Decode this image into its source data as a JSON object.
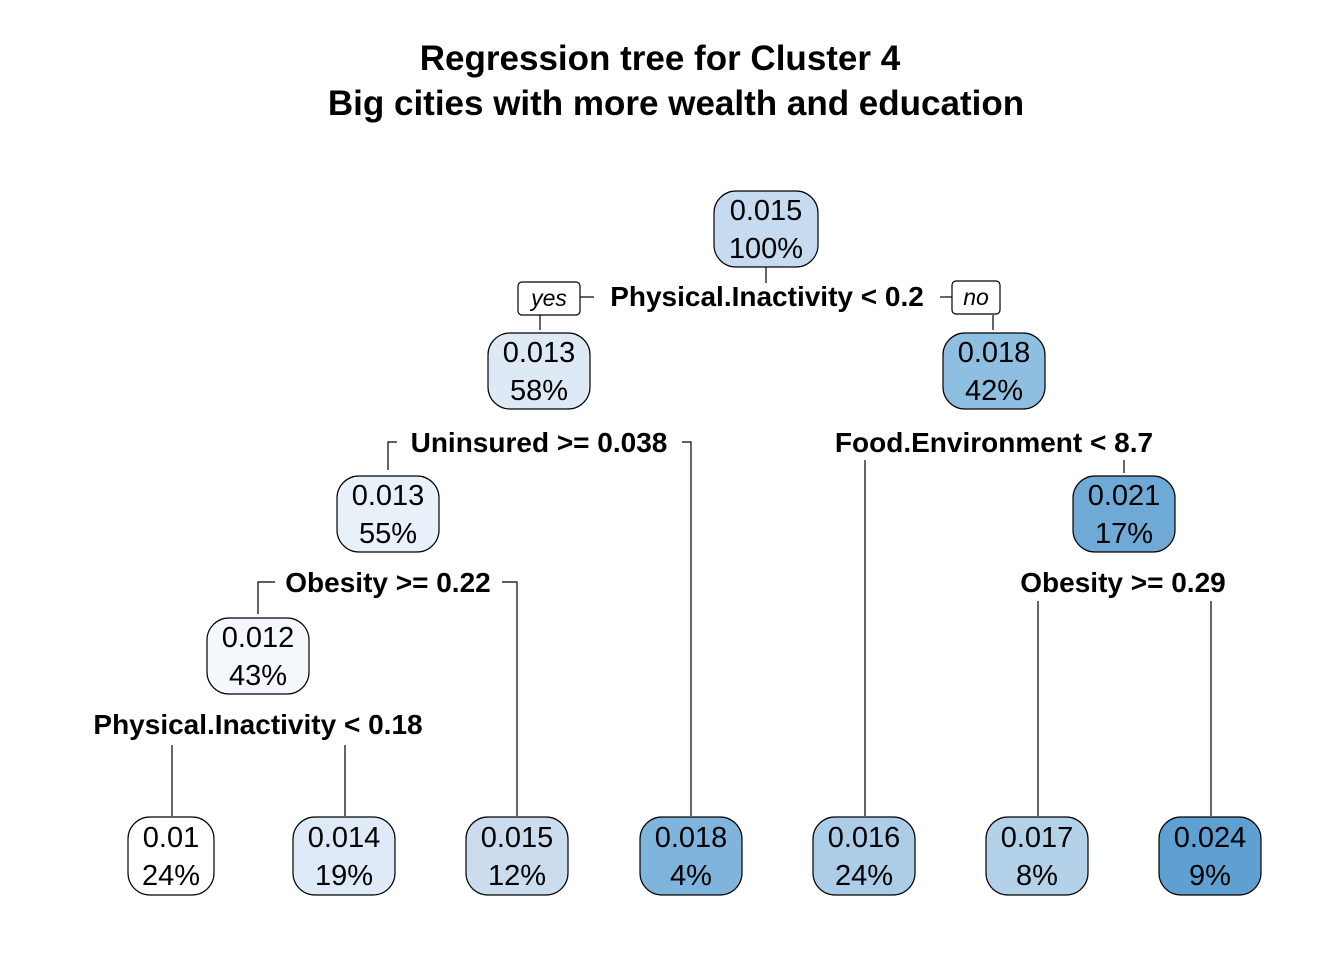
{
  "title": {
    "line1": "Regression tree for Cluster 4",
    "line2": "Big cities with more wealth and education"
  },
  "branch_labels": {
    "yes": "yes",
    "no": "no"
  },
  "splits": {
    "root": "Physical.Inactivity < 0.2",
    "n2": "Uninsured >= 0.038",
    "n3": "Food.Environment < 8.7",
    "n4": "Obesity >= 0.22",
    "n7": "Obesity >= 0.29",
    "n8": "Physical.Inactivity < 0.18"
  },
  "nodes": {
    "root": {
      "value": "0.015",
      "pct": "100%",
      "color": "#c6dbef"
    },
    "n2": {
      "value": "0.013",
      "pct": "58%",
      "color": "#dee9f6"
    },
    "n3": {
      "value": "0.018",
      "pct": "42%",
      "color": "#8fbfe0"
    },
    "n4": {
      "value": "0.013",
      "pct": "55%",
      "color": "#e8f1fa"
    },
    "n7": {
      "value": "0.021",
      "pct": "17%",
      "color": "#6fa9d6"
    },
    "n8": {
      "value": "0.012",
      "pct": "43%",
      "color": "#f4f8fd"
    },
    "l1": {
      "value": "0.01",
      "pct": "24%",
      "color": "#ffffff"
    },
    "l2": {
      "value": "0.014",
      "pct": "19%",
      "color": "#deeaf7"
    },
    "l3": {
      "value": "0.015",
      "pct": "12%",
      "color": "#cbdcef"
    },
    "l4": {
      "value": "0.018",
      "pct": "4%",
      "color": "#7fb4dc"
    },
    "l5": {
      "value": "0.016",
      "pct": "24%",
      "color": "#abcde7"
    },
    "l6": {
      "value": "0.017",
      "pct": "8%",
      "color": "#b3d2ea"
    },
    "l7": {
      "value": "0.024",
      "pct": "9%",
      "color": "#5fa0d2"
    }
  }
}
